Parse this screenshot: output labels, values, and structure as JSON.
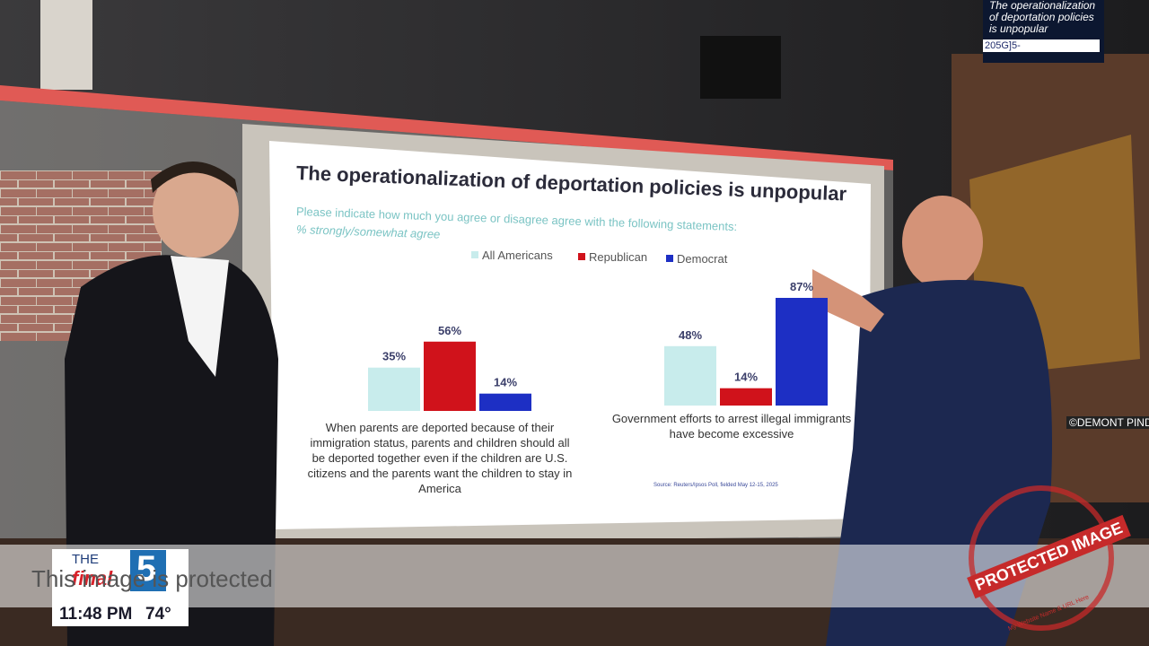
{
  "chart_data": {
    "type": "bar",
    "title": "The operationalization of deportation policies is unpopular",
    "subtitle": "Please indicate how much you agree or disagree agree with the following statements:",
    "measure": "% strongly/somewhat agree",
    "categories": [
      "When parents are deported because of their immigration status, parents and children should all be deported together even if the children are U.S. citizens and the parents want the children to stay in America",
      "Government efforts to arrest illegal immigrants have become excessive"
    ],
    "series": [
      {
        "name": "All Americans",
        "color": "#c8ecec",
        "values": [
          35,
          48
        ],
        "value_labels": [
          "35%",
          "48%"
        ]
      },
      {
        "name": "Republican",
        "color": "#d0121b",
        "values": [
          56,
          14
        ],
        "value_labels": [
          "56%",
          "14%"
        ]
      },
      {
        "name": "Democrat",
        "color": "#1d2fc4",
        "values": [
          14,
          87
        ],
        "value_labels": [
          "14%",
          "87%"
        ]
      }
    ],
    "source": "Source: Reuters/Ipsos Poll, fielded May 12-15, 2025"
  },
  "overlay": {
    "monitor_headline": "The operationalization of deportation policies is unpopular",
    "monitor_code": "205G]5-",
    "mural_credit": "©DEMONT PINDE",
    "logo_the": "THE",
    "logo_final": "final",
    "logo_number": "5",
    "time": "11:48 PM",
    "temperature": "74°",
    "watermark": "This image is protected",
    "stamp": "PROTECTED IMAGE",
    "stamp_caption": "My Website Name & URL Here"
  }
}
